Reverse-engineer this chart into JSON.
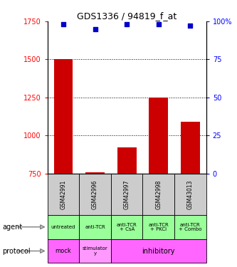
{
  "title": "GDS1336 / 94819_f_at",
  "samples": [
    "GSM42991",
    "GSM42996",
    "GSM42997",
    "GSM42998",
    "GSM43013"
  ],
  "counts": [
    1500,
    760,
    920,
    1250,
    1090
  ],
  "percentiles": [
    98,
    95,
    98,
    98,
    97
  ],
  "ylim_count": [
    750,
    1750
  ],
  "ylim_pct": [
    0,
    100
  ],
  "yticks_count": [
    750,
    1000,
    1250,
    1500,
    1750
  ],
  "yticks_pct": [
    0,
    25,
    50,
    75,
    100
  ],
  "bar_color": "#cc0000",
  "dot_color": "#0000cc",
  "agent_labels": [
    "untreated",
    "anti-TCR",
    "anti-TCR\n+ CsA",
    "anti-TCR\n+ PKCi",
    "anti-TCR\n+ Combo"
  ],
  "agent_bg": "#99ff99",
  "sample_bg": "#cccccc",
  "protocol_bg": "#ff66ff",
  "legend_count_color": "#cc0000",
  "legend_pct_color": "#0000cc",
  "pct_label": "100%"
}
